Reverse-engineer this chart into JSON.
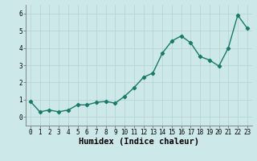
{
  "x": [
    0,
    1,
    2,
    3,
    4,
    5,
    6,
    7,
    8,
    9,
    10,
    11,
    12,
    13,
    14,
    15,
    16,
    17,
    18,
    19,
    20,
    21,
    22,
    23
  ],
  "y": [
    0.9,
    0.3,
    0.4,
    0.3,
    0.4,
    0.7,
    0.7,
    0.85,
    0.9,
    0.8,
    1.2,
    1.7,
    2.3,
    2.55,
    3.7,
    4.4,
    4.7,
    4.3,
    3.5,
    3.3,
    2.95,
    4.0,
    5.9,
    5.15
  ],
  "line_color": "#1a7a6a",
  "marker": "D",
  "marker_size": 2.2,
  "bg_color": "#cce8e8",
  "grid_color": "#b8d4d4",
  "xlabel": "Humidex (Indice chaleur)",
  "xlim": [
    -0.5,
    23.5
  ],
  "ylim": [
    -0.5,
    6.5
  ],
  "xticks": [
    0,
    1,
    2,
    3,
    4,
    5,
    6,
    7,
    8,
    9,
    10,
    11,
    12,
    13,
    14,
    15,
    16,
    17,
    18,
    19,
    20,
    21,
    22,
    23
  ],
  "yticks": [
    0,
    1,
    2,
    3,
    4,
    5,
    6
  ],
  "tick_fontsize": 5.5,
  "xlabel_fontsize": 7.5,
  "line_width": 1.0
}
